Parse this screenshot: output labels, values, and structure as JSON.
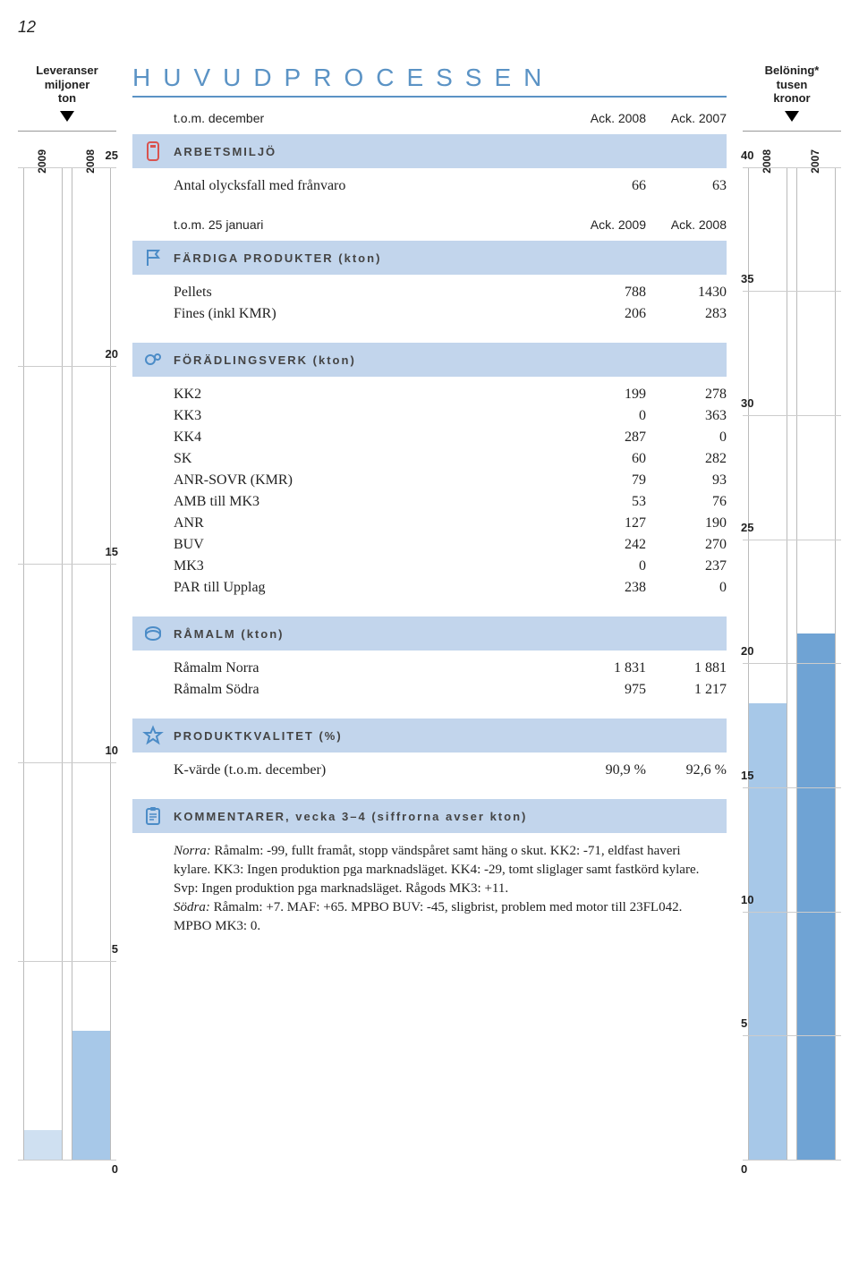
{
  "page_number": "12",
  "left_chart": {
    "title_lines": [
      "Leveranser",
      "miljoner",
      "ton"
    ],
    "cols": [
      {
        "label": "2009",
        "fill_pct": 3,
        "color": "#cfe0f1"
      },
      {
        "label": "2008",
        "fill_pct": 13,
        "color": "#a7c8e8"
      }
    ],
    "ticks": [
      "25",
      "20",
      "15",
      "10",
      "5",
      "0"
    ],
    "max": 25
  },
  "right_chart": {
    "title_lines": [
      "Belöning*",
      "tusen",
      "kronor"
    ],
    "cols": [
      {
        "label": "2008",
        "fill_pct": 46,
        "color": "#a7c8e8"
      },
      {
        "label": "2007",
        "fill_pct": 53,
        "color": "#6fa3d4"
      }
    ],
    "ticks": [
      "40",
      "35",
      "30",
      "25",
      "20",
      "15",
      "10",
      "5",
      "0"
    ],
    "max": 40
  },
  "main_title": "HUVUDPROCESSEN",
  "meta": {
    "row1": {
      "label": "t.o.m. december",
      "c1": "Ack. 2008",
      "c2": "Ack. 2007"
    },
    "row2": {
      "label": "t.o.m. 25 januari",
      "c1": "Ack. 2009",
      "c2": "Ack. 2008"
    }
  },
  "sections": {
    "arbetsmiljo": {
      "title": "ARBETSMILJÖ",
      "rows": [
        {
          "lbl": "Antal olycksfall med frånvaro",
          "c1": "66",
          "c2": "63"
        }
      ]
    },
    "fardiga": {
      "title": "FÄRDIGA PRODUKTER (kton)",
      "rows": [
        {
          "lbl": "Pellets",
          "c1": "788",
          "c2": "1430"
        },
        {
          "lbl": "Fines (inkl KMR)",
          "c1": "206",
          "c2": "283"
        }
      ]
    },
    "foradling": {
      "title": "FÖRÄDLINGSVERK (kton)",
      "rows": [
        {
          "lbl": "KK2",
          "c1": "199",
          "c2": "278"
        },
        {
          "lbl": "KK3",
          "c1": "0",
          "c2": "363"
        },
        {
          "lbl": "KK4",
          "c1": "287",
          "c2": "0"
        },
        {
          "lbl": "SK",
          "c1": "60",
          "c2": "282"
        },
        {
          "lbl": "ANR-SOVR (KMR)",
          "c1": "79",
          "c2": "93"
        },
        {
          "lbl": "AMB till MK3",
          "c1": "53",
          "c2": "76"
        },
        {
          "lbl": "ANR",
          "c1": "127",
          "c2": "190"
        },
        {
          "lbl": "BUV",
          "c1": "242",
          "c2": "270"
        },
        {
          "lbl": "MK3",
          "c1": "0",
          "c2": "237"
        },
        {
          "lbl": "PAR till Upplag",
          "c1": "238",
          "c2": "0"
        }
      ]
    },
    "ramalm": {
      "title": "RÅMALM (kton)",
      "rows": [
        {
          "lbl": "Råmalm Norra",
          "c1": "1 831",
          "c2": "1 881"
        },
        {
          "lbl": "Råmalm Södra",
          "c1": "975",
          "c2": "1 217"
        }
      ]
    },
    "kvalitet": {
      "title": "PRODUKTKVALITET (%)",
      "rows": [
        {
          "lbl": "K-värde (t.o.m. december)",
          "c1": "90,9 %",
          "c2": "92,6 %"
        }
      ]
    },
    "kommentarer": {
      "title": "KOMMENTARER, vecka 3–4 (siffrorna avser kton)",
      "body_norra_label": "Norra:",
      "body_norra": " Råmalm: -99, fullt framåt, stopp vändspåret samt häng o skut. KK2: -71, eldfast haveri kylare. KK3: Ingen produktion pga marknadsläget. KK4: -29, tomt sliglager samt fastkörd kylare. Svp: Ingen produktion pga marknadsläget. Rågods MK3: +11.",
      "body_sodra_label": "Södra:",
      "body_sodra": " Råmalm: +7. MAF: +65. MPBO BUV: -45, sligbrist, problem med motor till 23FL042. MPBO MK3: 0."
    }
  },
  "colors": {
    "header_bg": "#c2d5ec",
    "accent_blue": "#5b93c5",
    "bar_blue": "#a7c8e8"
  }
}
